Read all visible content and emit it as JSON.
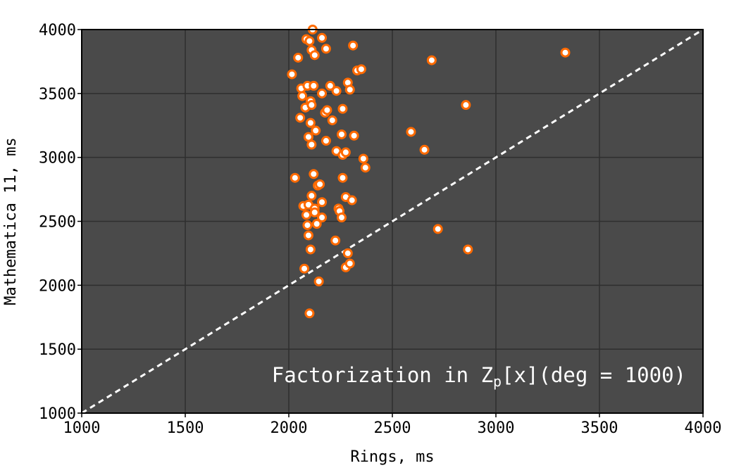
{
  "chart_data": {
    "type": "scatter",
    "xlabel": "Rings, ms",
    "ylabel": "Mathematica 11, ms",
    "xlim": [
      1000,
      4000
    ],
    "ylim": [
      1000,
      4000
    ],
    "x_ticks": [
      "1000",
      "1500",
      "2000",
      "2500",
      "3000",
      "3500",
      "4000"
    ],
    "y_ticks": [
      "1000",
      "1500",
      "2000",
      "2500",
      "3000",
      "3500",
      "4000"
    ],
    "grid": true,
    "annotation": {
      "prefix": "Factorization in Z",
      "subscript": "p",
      "suffix": "[x](deg = 1000)"
    },
    "reference_line": {
      "type": "diagonal",
      "style": "dashed",
      "color": "#ffffff"
    },
    "colors": {
      "plot_background": "#4a4a4a",
      "grid": "#2e2e2e",
      "marker_edge": "#ff6a00",
      "marker_face": "#ffffff"
    },
    "series": [
      {
        "points": [
          [
            2115,
            4000
          ],
          [
            2085,
            3925
          ],
          [
            2100,
            3910
          ],
          [
            2160,
            3935
          ],
          [
            2110,
            3840
          ],
          [
            2125,
            3800
          ],
          [
            2180,
            3850
          ],
          [
            2310,
            3875
          ],
          [
            2045,
            3780
          ],
          [
            2015,
            3650
          ],
          [
            2060,
            3540
          ],
          [
            2090,
            3560
          ],
          [
            2120,
            3560
          ],
          [
            2065,
            3480
          ],
          [
            2105,
            3440
          ],
          [
            2160,
            3500
          ],
          [
            2200,
            3560
          ],
          [
            2230,
            3520
          ],
          [
            2285,
            3585
          ],
          [
            2295,
            3530
          ],
          [
            2330,
            3680
          ],
          [
            2350,
            3690
          ],
          [
            2080,
            3390
          ],
          [
            2110,
            3410
          ],
          [
            2055,
            3310
          ],
          [
            2175,
            3350
          ],
          [
            2185,
            3370
          ],
          [
            2260,
            3380
          ],
          [
            2210,
            3290
          ],
          [
            2105,
            3270
          ],
          [
            2130,
            3210
          ],
          [
            2095,
            3160
          ],
          [
            2110,
            3100
          ],
          [
            2180,
            3130
          ],
          [
            2255,
            3180
          ],
          [
            2315,
            3170
          ],
          [
            2230,
            3050
          ],
          [
            2260,
            3020
          ],
          [
            2275,
            3040
          ],
          [
            2360,
            2990
          ],
          [
            2370,
            2920
          ],
          [
            2030,
            2840
          ],
          [
            2120,
            2870
          ],
          [
            2140,
            2780
          ],
          [
            2150,
            2790
          ],
          [
            2260,
            2840
          ],
          [
            2110,
            2700
          ],
          [
            2275,
            2690
          ],
          [
            2305,
            2665
          ],
          [
            2070,
            2620
          ],
          [
            2095,
            2630
          ],
          [
            2160,
            2650
          ],
          [
            2125,
            2600
          ],
          [
            2240,
            2600
          ],
          [
            2245,
            2580
          ],
          [
            2085,
            2550
          ],
          [
            2125,
            2570
          ],
          [
            2160,
            2530
          ],
          [
            2255,
            2530
          ],
          [
            2090,
            2470
          ],
          [
            2135,
            2480
          ],
          [
            2095,
            2390
          ],
          [
            2225,
            2350
          ],
          [
            2105,
            2280
          ],
          [
            2285,
            2250
          ],
          [
            2075,
            2130
          ],
          [
            2275,
            2140
          ],
          [
            2295,
            2170
          ],
          [
            2145,
            2030
          ],
          [
            2100,
            1780
          ],
          [
            2590,
            3200
          ],
          [
            2655,
            3060
          ],
          [
            2690,
            3760
          ],
          [
            2855,
            3410
          ],
          [
            2720,
            2440
          ],
          [
            2865,
            2280
          ],
          [
            3335,
            3820
          ]
        ]
      }
    ]
  }
}
